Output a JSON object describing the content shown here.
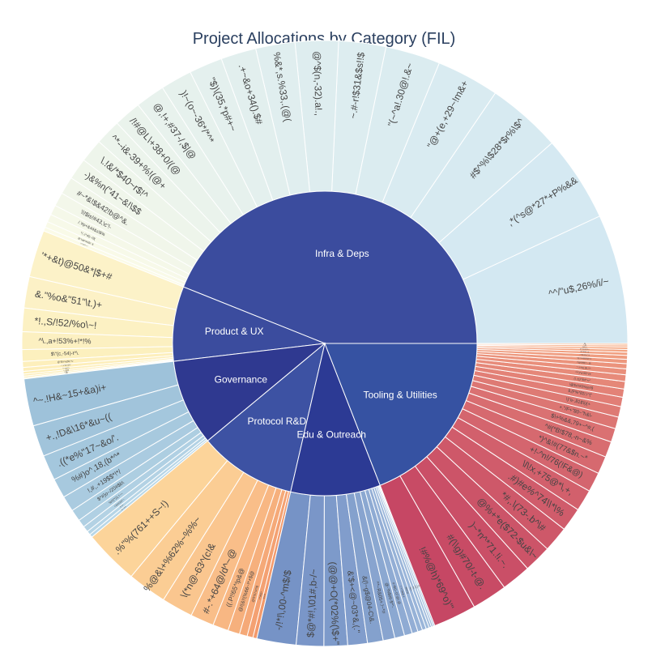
{
  "chart_data": {
    "type": "sunburst",
    "title": "Project Allocations by Category (FIL)",
    "categories": [
      {
        "name": "Infra & Deps",
        "color": "#3b4c9e",
        "palette": [
          "#d3e8f2",
          "#fbfbe8"
        ],
        "children": [
          {
            "label": "^^/\"u$,26%/i/~",
            "value": 33
          },
          {
            "label": ",*(^s@*27*+P%&&",
            "value": 22
          },
          {
            "label": "#$^%\\$28*$r%\\$^",
            "value": 19
          },
          {
            "label": "\"@+(e,+29~!m&+",
            "value": 16
          },
          {
            "label": "\"(~^a!.30@!.&~",
            "value": 14
          },
          {
            "label": "~.#-r!$31&$s!!$",
            "value": 12
          },
          {
            "label": "@^$(n,-32).a!.,",
            "value": 11
          },
          {
            "label": "%&*,s.%33,.(@(",
            "value": 10
          },
          {
            "label": ".+~&o+34().$#",
            "value": 9
          },
          {
            "label": "\"$)\\(35,*p#+~",
            "value": 8.5
          },
          {
            "label": ")!~(o~-36*/*^*",
            "value": 8
          },
          {
            "label": "@,!+,#37-/,$|@",
            "value": 7.5
          },
          {
            "label": "/!#@L\\+38+0/(@",
            "value": 7
          },
          {
            "label": "^*--i&-39+%!(@+",
            "value": 6.5
          },
          {
            "label": "\\.!&/*$40~r$!^",
            "value": 6
          },
          {
            "label": "-)&%n(\"41~&!\\$$",
            "value": 5.5
          },
          {
            "label": "#~*&!$&42!b@^&.",
            "value": 4.5
          },
          {
            "label": "\\\\!$is!#43,\\c'!-",
            "value": 3.5
          },
          {
            "label": "/.'#p+&44&s\\$%",
            "value": 2.5
          },
          {
            "label": "*/,.\\^45~!\\f(",
            "value": 2
          },
          {
            "label": "@^\\&$*46@!~$",
            "value": 1.5
          },
          {
            "label": "\\*/-!$47+~!",
            "value": 1
          }
        ]
      },
      {
        "name": "Product & UX",
        "color": "#3b4c9e",
        "palette": [
          "#fcf2c8",
          "#fdecb0"
        ],
        "children": [
          {
            "label": "'*+&t)@50&*|$+#",
            "value": 12
          },
          {
            "label": "&.\"%o&\"51\"\\t.)+",
            "value": 8
          },
          {
            "label": "*!.,S/!52/%o\\~!",
            "value": 6
          },
          {
            "label": "^\\.,a+!53%+!*!%",
            "value": 4.5
          },
          {
            "label": "$\\\"(c,-54)-t^\\.",
            "value": 3
          },
          {
            "label": "@\"$!/r%(55,*s-",
            "value": 1.5
          },
          {
            "label": "~^,-\\\\^56+@S^",
            "value": 1
          },
          {
            "label": "^+~&a57+",
            "value": 0.7
          },
          {
            "label": "+~$58$",
            "value": 0.5
          },
          {
            "label": "+!59.~",
            "value": 0.4
          },
          {
            "label": ",*60",
            "value": 0.3
          }
        ]
      },
      {
        "name": "Governance",
        "color": "#2f3990",
        "palette": [
          "#9ec2da",
          "#b9d7e7"
        ],
        "children": [
          {
            "label": "^~.!H&~15+&a)i+",
            "value": 12
          },
          {
            "label": "+.,!D&\\16*&u~((",
            "value": 8
          },
          {
            "label": ".((*e%\"17~&o/'.",
            "value": 6.5
          },
          {
            "label": "%#)o^,18,(b*^*",
            "value": 5
          },
          {
            "label": "!,#,.+19$$*!*/",
            "value": 4
          },
          {
            "label": "$*#)o~/20#$b\\",
            "value": 3
          },
          {
            "label": "%!/(^21.!~~",
            "value": 2
          },
          {
            "label": "!.\\&#!/22!^~",
            "value": 1.5
          },
          {
            "label": "#(-23~",
            "value": 1
          },
          {
            "label": "%r~%24",
            "value": 0.8
          }
        ]
      },
      {
        "name": "Protocol R&D",
        "color": "#3d52a3",
        "palette": [
          "#fcd49a",
          "#f39a6c"
        ],
        "children": [
          {
            "label": ".%\"%(761++S~!)",
            "value": 14
          },
          {
            "label": "%@&\\+%62%~%%~",
            "value": 10
          },
          {
            "label": "\\(*n@-63^(c!&",
            "value": 8
          },
          {
            "label": "#-.*+64@/d^~@",
            "value": 6
          },
          {
            "label": "((.P!!65^!p&@",
            "value": 4
          },
          {
            "label": "@/(&!!(%66~!*+$@",
            "value": 3
          },
          {
            "label": "@\\\\^67r#!!$",
            "value": 2
          },
          {
            "label": "+^#68!*",
            "value": 1.5
          },
          {
            "label": "@\\&69\\",
            "value": 1
          }
        ]
      },
      {
        "name": "Edu & Outreach",
        "color": "#2c3a94",
        "palette": [
          "#7693c6",
          "#a8c3e0"
        ],
        "children": [
          {
            "label": "-/!*!\\,00-^m$/$",
            "value": 10
          },
          {
            "label": "$@*#!,\\01#,b-/~",
            "value": 7
          },
          {
            "label": "(@@+O(*02%(\\$+\"",
            "value": 6
          },
          {
            "label": "&'$+<@~03*&,(.\"",
            "value": 5
          },
          {
            "label": "&(!~g$@04-C\\&.",
            "value": 4
          },
          {
            "label": "^*~R&05+.!~*#",
            "value": 3
          },
          {
            "label": "@-'!N$06-$*^-",
            "value": 2.5
          },
          {
            "label": "#-\\$G~07@!.@",
            "value": 2
          },
          {
            "label": "!~+^08@.#",
            "value": 1.5
          },
          {
            "label": "\\/$09#@",
            "value": 1.2
          },
          {
            "label": "^$10+",
            "value": 1
          },
          {
            "label": "(!11,",
            "value": 0.8
          },
          {
            "label": "&12*",
            "value": 0.6
          },
          {
            "label": "~13",
            "value": 0.5
          },
          {
            "label": "14",
            "value": 0.4
          }
        ]
      },
      {
        "name": "Tooling & Utilities",
        "color": "#3652a2",
        "palette": [
          "#c64764",
          "#f9b186"
        ],
        "children": [
          {
            "label": "!#%@h)*69^o)\"'",
            "value": 11
          },
          {
            "label": "#(\\\\g)#70/-t-@.",
            "value": 9
          },
          {
            "label": ")~*n^*71.!i.~.",
            "value": 7.5
          },
          {
            "label": "@%+*e($72-$u&\\~",
            "value": 7
          },
          {
            "label": "*#,.\\(73-.b^\\#",
            "value": 6.5
          },
          {
            "label": ".#)#e%^74\\\\*\\%",
            "value": 6
          },
          {
            "label": "\\l\\!x,+75@*\\,+,",
            "value": 5.5
          },
          {
            "label": "+!-^n!/76(!F&@)",
            "value": 5
          },
          {
            "label": "*)^&!#(77&$n.~*",
            "value": 4.5
          },
          {
            "label": "^#(*B!$78,-n~&%",
            "value": 4
          },
          {
            "label": "$\\+%&&,79+~^#,(",
            "value": 3.5
          },
          {
            "label": "+.\"/F+\"80~\"h&\\-",
            "value": 3
          },
          {
            "label": "\\)\"e-,81$\\i)(+",
            "value": 2.7
          },
          {
            "label": "$,(F%*82/,\\^(\"",
            "value": 2.4
          },
          {
            "label": "\\@$c!!83%(e!/$",
            "value": 2.1
          },
          {
            "label": "(\\.-b)^84*+r\"",
            "value": 1.9
          },
          {
            "label": "^!^)^a*85\"\\/#",
            "value": 1.7
          },
          {
            "label": ".\"~)-!%(.86,!!!~",
            "value": 1.5
          },
          {
            "label": "/^@!$\\$87+~@,",
            "value": 1.3
          },
          {
            "label": "*'@+%#88$&@!%~",
            "value": 1.1
          },
          {
            "label": ">-!$&!89%/\"!&",
            "value": 1
          },
          {
            "label": "!$*\\*$90)~@",
            "value": 0.8
          },
          {
            "label": "$^^)91@(%+",
            "value": 0.7
          },
          {
            "label": "(!#92~!",
            "value": 0.6
          },
          {
            "label": "^~93",
            "value": 0.5
          },
          {
            "label": "94",
            "value": 0.4
          }
        ]
      }
    ]
  }
}
